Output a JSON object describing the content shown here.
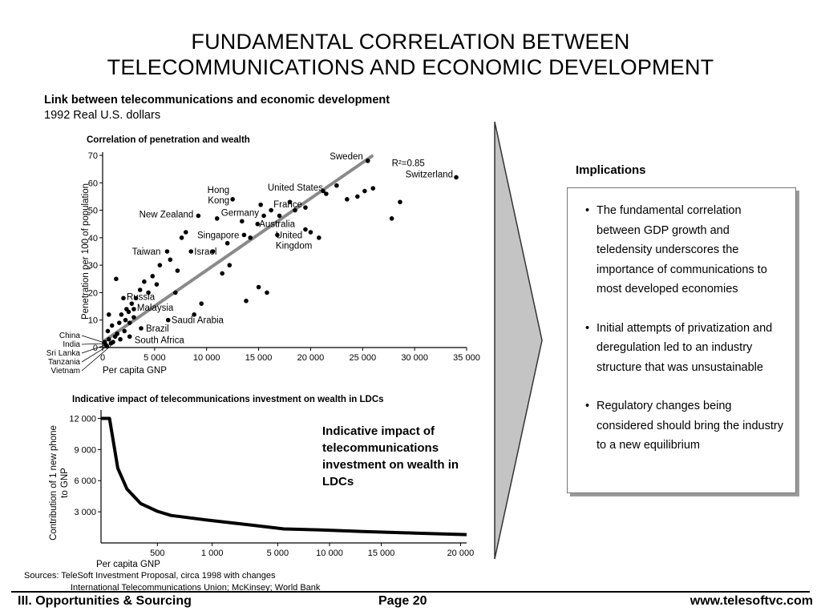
{
  "slide": {
    "title_line1": "FUNDAMENTAL CORRELATION BETWEEN",
    "title_line2": "TELECOMMUNICATIONS AND ECONOMIC DEVELOPMENT",
    "subhead_bold": "Link between telecommunications and economic development",
    "subhead_units": "1992 Real U.S. dollars"
  },
  "implications": {
    "label": "Implications",
    "bullets": [
      "The fundamental correlation between GDP growth and teledensity underscores the importance of communications to most developed economies",
      "Initial attempts of privatization and deregulation led to an industry structure that was unsustainable",
      "Regulatory changes being considered should bring the industry to a new equilibrium"
    ]
  },
  "chart2_caption": "Indicative impact of telecommunications investment on wealth in LDCs",
  "sources": {
    "line1": "Sources:  TeleSoft Investment Proposal, circa 1998 with changes",
    "line2": "International Telecommunications Union; McKinsey; World Bank"
  },
  "footer": {
    "left": "III. Opportunities & Sourcing",
    "center": "Page 20",
    "right": "www.telesoftvc.com"
  },
  "chart_data": [
    {
      "type": "scatter",
      "title": "Correlation of penetration and wealth",
      "xlabel": "Per capita GNP",
      "ylabel": "Penetration per 100 of population",
      "xlim": [
        0,
        35000
      ],
      "ylim": [
        0,
        70
      ],
      "x_ticks": [
        0,
        5000,
        10000,
        15000,
        20000,
        25000,
        30000,
        35000
      ],
      "x_tick_labels": [
        "0",
        "5 000",
        "10 000",
        "15 000",
        "20 000",
        "25 000",
        "30 000",
        "35 000"
      ],
      "y_ticks": [
        0,
        10,
        20,
        30,
        40,
        50,
        60,
        70
      ],
      "y_tick_labels": [
        "0",
        "10",
        "20",
        "30",
        "40",
        "50",
        "60",
        "70"
      ],
      "annotation": "R²=0.85",
      "trendline": [
        [
          0,
          2
        ],
        [
          26000,
          70
        ]
      ],
      "labeled_points": [
        {
          "label": "Sweden",
          "x": 25500,
          "y": 68
        },
        {
          "label": "Switzerland",
          "x": 34000,
          "y": 62
        },
        {
          "label": "Hong Kong",
          "x": 12500,
          "y": 54
        },
        {
          "label": "United States",
          "x": 21500,
          "y": 56
        },
        {
          "label": "France",
          "x": 19500,
          "y": 51
        },
        {
          "label": "Germany",
          "x": 15500,
          "y": 48
        },
        {
          "label": "Australia",
          "x": 14900,
          "y": 45
        },
        {
          "label": "New Zealand",
          "x": 9200,
          "y": 48
        },
        {
          "label": "Singapore",
          "x": 13600,
          "y": 41
        },
        {
          "label": "United Kingdom",
          "x": 16800,
          "y": 41
        },
        {
          "label": "Taiwan",
          "x": 6200,
          "y": 35
        },
        {
          "label": "Israel",
          "x": 8500,
          "y": 35
        },
        {
          "label": "Russia",
          "x": 2000,
          "y": 18
        },
        {
          "label": "Malaysia",
          "x": 3000,
          "y": 14
        },
        {
          "label": "Saudi Arabia",
          "x": 6300,
          "y": 10
        },
        {
          "label": "Brazil",
          "x": 3700,
          "y": 7
        },
        {
          "label": "South Africa",
          "x": 2600,
          "y": 4
        }
      ],
      "points": [
        [
          200,
          2
        ],
        [
          300,
          1
        ],
        [
          400,
          0.5
        ],
        [
          600,
          3
        ],
        [
          800,
          1.5
        ],
        [
          1000,
          2
        ],
        [
          1200,
          4
        ],
        [
          500,
          6
        ],
        [
          900,
          8
        ],
        [
          1400,
          5
        ],
        [
          1600,
          9
        ],
        [
          1800,
          12
        ],
        [
          2200,
          10
        ],
        [
          2500,
          13
        ],
        [
          2800,
          16
        ],
        [
          3200,
          18
        ],
        [
          3600,
          21
        ],
        [
          4000,
          24
        ],
        [
          4400,
          20
        ],
        [
          1300,
          25
        ],
        [
          2100,
          6
        ],
        [
          1700,
          3
        ],
        [
          2600,
          9
        ],
        [
          3000,
          11
        ],
        [
          4800,
          26
        ],
        [
          5200,
          23
        ],
        [
          5500,
          30
        ],
        [
          6500,
          32
        ],
        [
          7200,
          28
        ],
        [
          7600,
          40
        ],
        [
          8000,
          42
        ],
        [
          10600,
          35
        ],
        [
          11500,
          27
        ],
        [
          11000,
          47
        ],
        [
          12000,
          38
        ],
        [
          13400,
          46
        ],
        [
          14200,
          40
        ],
        [
          15200,
          52
        ],
        [
          16200,
          50
        ],
        [
          17000,
          48
        ],
        [
          18000,
          53
        ],
        [
          18500,
          50
        ],
        [
          19500,
          43
        ],
        [
          20000,
          42
        ],
        [
          20800,
          40
        ],
        [
          21200,
          57
        ],
        [
          22500,
          59
        ],
        [
          23500,
          54
        ],
        [
          24500,
          55
        ],
        [
          25200,
          57
        ],
        [
          26000,
          58
        ],
        [
          27800,
          47
        ],
        [
          28600,
          53
        ],
        [
          13800,
          17
        ],
        [
          15000,
          22
        ],
        [
          15800,
          20
        ],
        [
          12200,
          30
        ],
        [
          9500,
          16
        ],
        [
          8800,
          12
        ],
        [
          7000,
          20
        ],
        [
          600,
          12
        ],
        [
          2300,
          14
        ]
      ]
    },
    {
      "type": "line",
      "title": "Indicative impact of telecommunications investment on wealth in LDCs",
      "xlabel": "Per capita GNP",
      "ylabel": "Contribution of 1 new phone to GNP",
      "x_tick_labels": [
        "500",
        "1 000",
        "5 000",
        "10 000",
        "15 000",
        "20 000"
      ],
      "y_ticks": [
        0,
        3000,
        6000,
        9000,
        12000
      ],
      "y_tick_labels": [
        "3 000",
        "6 000",
        "9 000",
        "12 000"
      ],
      "ylim": [
        0,
        12500
      ],
      "series": [
        {
          "points": [
            [
              0,
              12000
            ],
            [
              0.1,
              12000
            ],
            [
              0.28,
              12000
            ],
            [
              0.55,
              7200
            ],
            [
              0.85,
              5200
            ],
            [
              1.3,
              3800
            ],
            [
              1.85,
              3050
            ],
            [
              2.3,
              2650
            ],
            [
              3.5,
              2200
            ],
            [
              5.0,
              1700
            ],
            [
              6.0,
              1350
            ],
            [
              7.2,
              1250
            ],
            [
              8.6,
              1100
            ],
            [
              10.3,
              950
            ],
            [
              12.0,
              800
            ]
          ]
        }
      ],
      "x_tick_positions": [
        1.85,
        3.65,
        5.8,
        7.5,
        9.2,
        11.8
      ],
      "xlim": [
        0,
        12
      ]
    }
  ],
  "left_country_labels": [
    "China",
    "India",
    "Sri Lanka",
    "Tanzania",
    "Vietnam"
  ]
}
